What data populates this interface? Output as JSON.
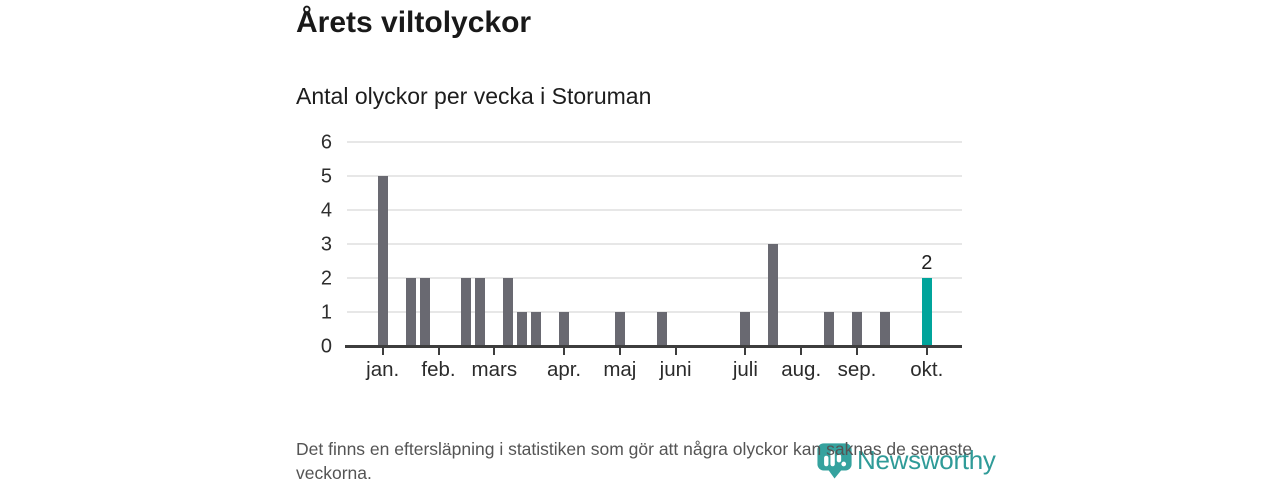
{
  "header": {
    "title": "Årets viltolyckor",
    "subtitle": "Antal olyckor per vecka i Storuman"
  },
  "chart_data": {
    "type": "bar",
    "title": "Årets viltolyckor",
    "subtitle": "Antal olyckor per vecka i Storuman",
    "xlabel": "",
    "ylabel": "",
    "x_unit": "vecka",
    "weeks_range": [
      1,
      40
    ],
    "values": [
      5,
      0,
      2,
      2,
      0,
      0,
      2,
      2,
      0,
      2,
      1,
      1,
      0,
      1,
      0,
      0,
      0,
      1,
      0,
      0,
      1,
      0,
      0,
      0,
      0,
      0,
      1,
      0,
      3,
      0,
      0,
      0,
      1,
      0,
      1,
      0,
      1,
      0,
      0,
      2
    ],
    "yticks": [
      0,
      1,
      2,
      3,
      4,
      5,
      6
    ],
    "ylim": [
      0,
      6
    ],
    "grid": true,
    "legend": "none",
    "x_ticks": [
      {
        "label": "jan.",
        "week": 1
      },
      {
        "label": "feb.",
        "week": 5
      },
      {
        "label": "mars",
        "week": 9
      },
      {
        "label": "apr.",
        "week": 14
      },
      {
        "label": "maj",
        "week": 18
      },
      {
        "label": "juni",
        "week": 22
      },
      {
        "label": "juli",
        "week": 27
      },
      {
        "label": "aug.",
        "week": 31
      },
      {
        "label": "sep.",
        "week": 35
      },
      {
        "label": "okt.",
        "week": 40
      }
    ],
    "highlight_week": 40,
    "highlight_value_label": "2",
    "colors": {
      "bar": "#696971",
      "highlight": "#00a49b",
      "gridline": "#e7e7e7",
      "axis": "#3d3d3d"
    }
  },
  "footer": {
    "note": "Det finns en eftersläpning i statistiken som gör att några olyckor kan saknas de senaste veckorna.",
    "brand": "Newsworthy"
  }
}
